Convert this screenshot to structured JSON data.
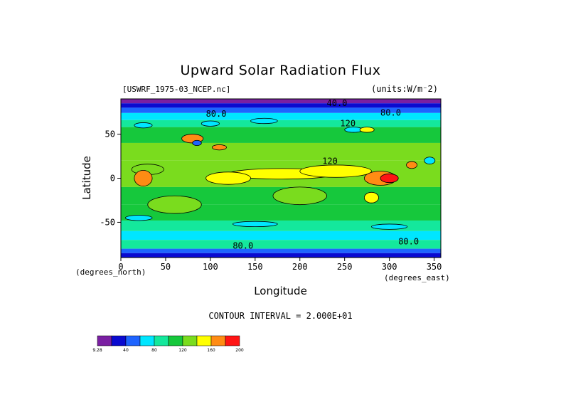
{
  "chart_data": {
    "type": "heatmap",
    "title": "Upward Solar Radiation Flux",
    "dataset_label": "[USWRF_1975-03_NCEP.nc]",
    "units_label": "(units:W/m⁻2)",
    "xlabel": "Longitude",
    "ylabel": "Latitude",
    "x_unit_label": "(degrees_east)",
    "y_unit_label": "(degrees_north)",
    "xlim": [
      0,
      357.5
    ],
    "ylim": [
      -90,
      90
    ],
    "x_ticks": [
      0,
      50,
      100,
      150,
      200,
      250,
      300,
      350
    ],
    "y_ticks": [
      50,
      0,
      -50
    ],
    "contour_interval_text": "CONTOUR INTERVAL = 2.000E+01",
    "contour_labels": [
      {
        "text": "40.0",
        "x": 230,
        "y": 82
      },
      {
        "text": "80.0",
        "x": 95,
        "y": 70
      },
      {
        "text": "80.0",
        "x": 290,
        "y": 71
      },
      {
        "text": "120",
        "x": 245,
        "y": 59
      },
      {
        "text": "120",
        "x": 225,
        "y": 16
      },
      {
        "text": "80.0",
        "x": 125,
        "y": -80
      },
      {
        "text": "80.0",
        "x": 310,
        "y": -75
      }
    ],
    "colorbar": {
      "levels": [
        "9.28",
        "40",
        "80",
        "120",
        "160",
        "200"
      ],
      "colors": [
        "#7a1fa2",
        "#0a0ad0",
        "#1e64ff",
        "#00e6ff",
        "#14e89c",
        "#16c83c",
        "#7adc1e",
        "#ffff00",
        "#ff8c14",
        "#ff1414"
      ]
    }
  }
}
